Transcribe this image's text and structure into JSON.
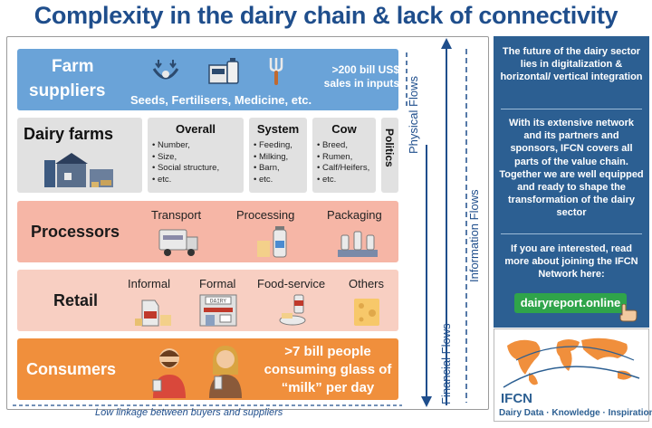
{
  "title": "Complexity in the dairy chain & lack of connectivity",
  "farm": {
    "line1": "Farm",
    "line2": "suppliers",
    "sub": "Seeds, Fertilisers, Medicine, etc.",
    "sales1": ">200 bill US$",
    "sales2": "sales in inputs"
  },
  "dairy": {
    "title": "Dairy farms",
    "overall": {
      "head": "Overall",
      "items": [
        "Number,",
        "Size,",
        "Social structure,",
        "etc."
      ]
    },
    "system": {
      "head": "System",
      "items": [
        "Feeding,",
        "Milking,",
        "Barn,",
        "etc."
      ]
    },
    "cow": {
      "head": "Cow",
      "items": [
        "Breed,",
        "Rumen,",
        "Calf/Heifers,",
        "etc."
      ]
    },
    "politics": "Politics"
  },
  "processors": {
    "title": "Processors",
    "cols": [
      "Transport",
      "Processing",
      "Packaging"
    ]
  },
  "retail": {
    "title": "Retail",
    "cols": [
      "Informal",
      "Formal",
      "Food-service",
      "Others"
    ],
    "dairy_sign": "DAIRY"
  },
  "consumers": {
    "title": "Consumers",
    "line1": ">7 bill people",
    "line2": "consuming glass of",
    "line3": "“milk” per day"
  },
  "flows": {
    "physical": "Physical Flows",
    "information": "Information Flows",
    "financial": "Financial Flows"
  },
  "bottom_label": "Low linkage between buyers and suppliers",
  "side": {
    "p1": "The future of the dairy sector lies in digitalization & horizontal/ vertical integration",
    "p2": "With its extensive network and its partners and sponsors, IFCN covers all parts of the value chain. Together we are well equipped and ready to shape the transformation of the dairy sector",
    "p3": "If you are interested, read more about joining the IFCN Network here:",
    "link": "dairyreport.online"
  },
  "logo": {
    "name": "IFCN",
    "tagline": "Dairy Data · Knowledge · Inspiration"
  },
  "colors": {
    "title_blue": "#1f4e8c",
    "farm_blue": "#6aa3d8",
    "processors_pink": "#f6b6a6",
    "retail_pink": "#f8cfc2",
    "consumers_orange": "#f08f3c",
    "side_blue": "#2c5f92",
    "link_green": "#2fa44a"
  }
}
